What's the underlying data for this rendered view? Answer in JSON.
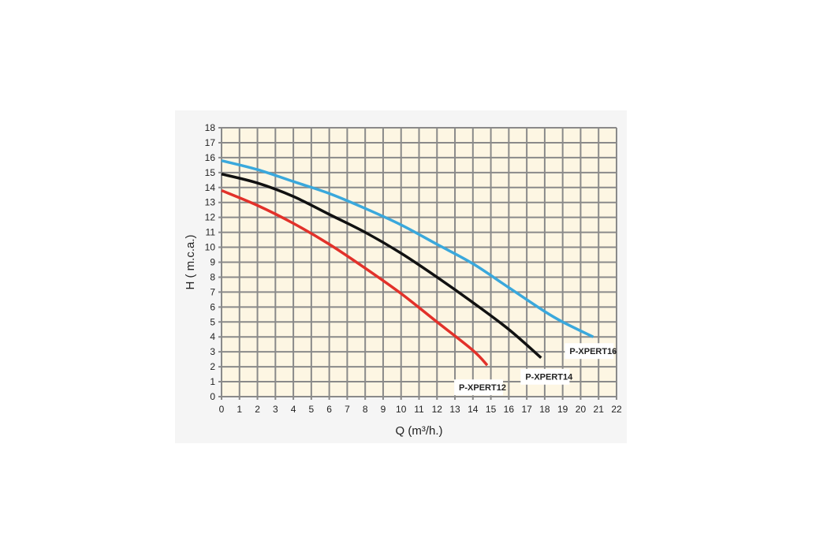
{
  "chart_data": {
    "type": "line",
    "title": "",
    "xlabel": "Q (m³/h.)",
    "ylabel": "H ( m.c.a.)",
    "xlim": [
      0,
      22
    ],
    "ylim": [
      0,
      18
    ],
    "xticks": [
      0,
      1,
      2,
      3,
      4,
      5,
      6,
      7,
      8,
      9,
      10,
      11,
      12,
      13,
      14,
      15,
      16,
      17,
      18,
      19,
      20,
      21,
      22
    ],
    "yticks": [
      0,
      1,
      2,
      3,
      4,
      5,
      6,
      7,
      8,
      9,
      10,
      11,
      12,
      13,
      14,
      15,
      16,
      17,
      18
    ],
    "grid": true,
    "plot_background": "#fdf6e3",
    "series": [
      {
        "name": "P-XPERT16",
        "color": "#3aa8dc",
        "x": [
          0,
          2,
          4,
          6,
          8,
          10,
          12,
          14,
          16,
          18,
          19,
          20.7
        ],
        "y": [
          15.8,
          15.2,
          14.4,
          13.6,
          12.6,
          11.5,
          10.2,
          8.9,
          7.3,
          5.7,
          5.0,
          4.0
        ]
      },
      {
        "name": "P-XPERT14",
        "color": "#111111",
        "x": [
          0,
          2,
          4,
          6,
          8,
          10,
          12,
          14,
          16,
          17.8
        ],
        "y": [
          14.9,
          14.3,
          13.4,
          12.2,
          11.0,
          9.6,
          8.0,
          6.3,
          4.5,
          2.6
        ]
      },
      {
        "name": "P-XPERT12",
        "color": "#e2312a",
        "x": [
          0,
          2,
          4,
          6,
          8,
          10,
          12,
          14,
          14.8
        ],
        "y": [
          13.8,
          12.8,
          11.6,
          10.2,
          8.6,
          6.9,
          5.0,
          3.1,
          2.1
        ]
      }
    ]
  }
}
